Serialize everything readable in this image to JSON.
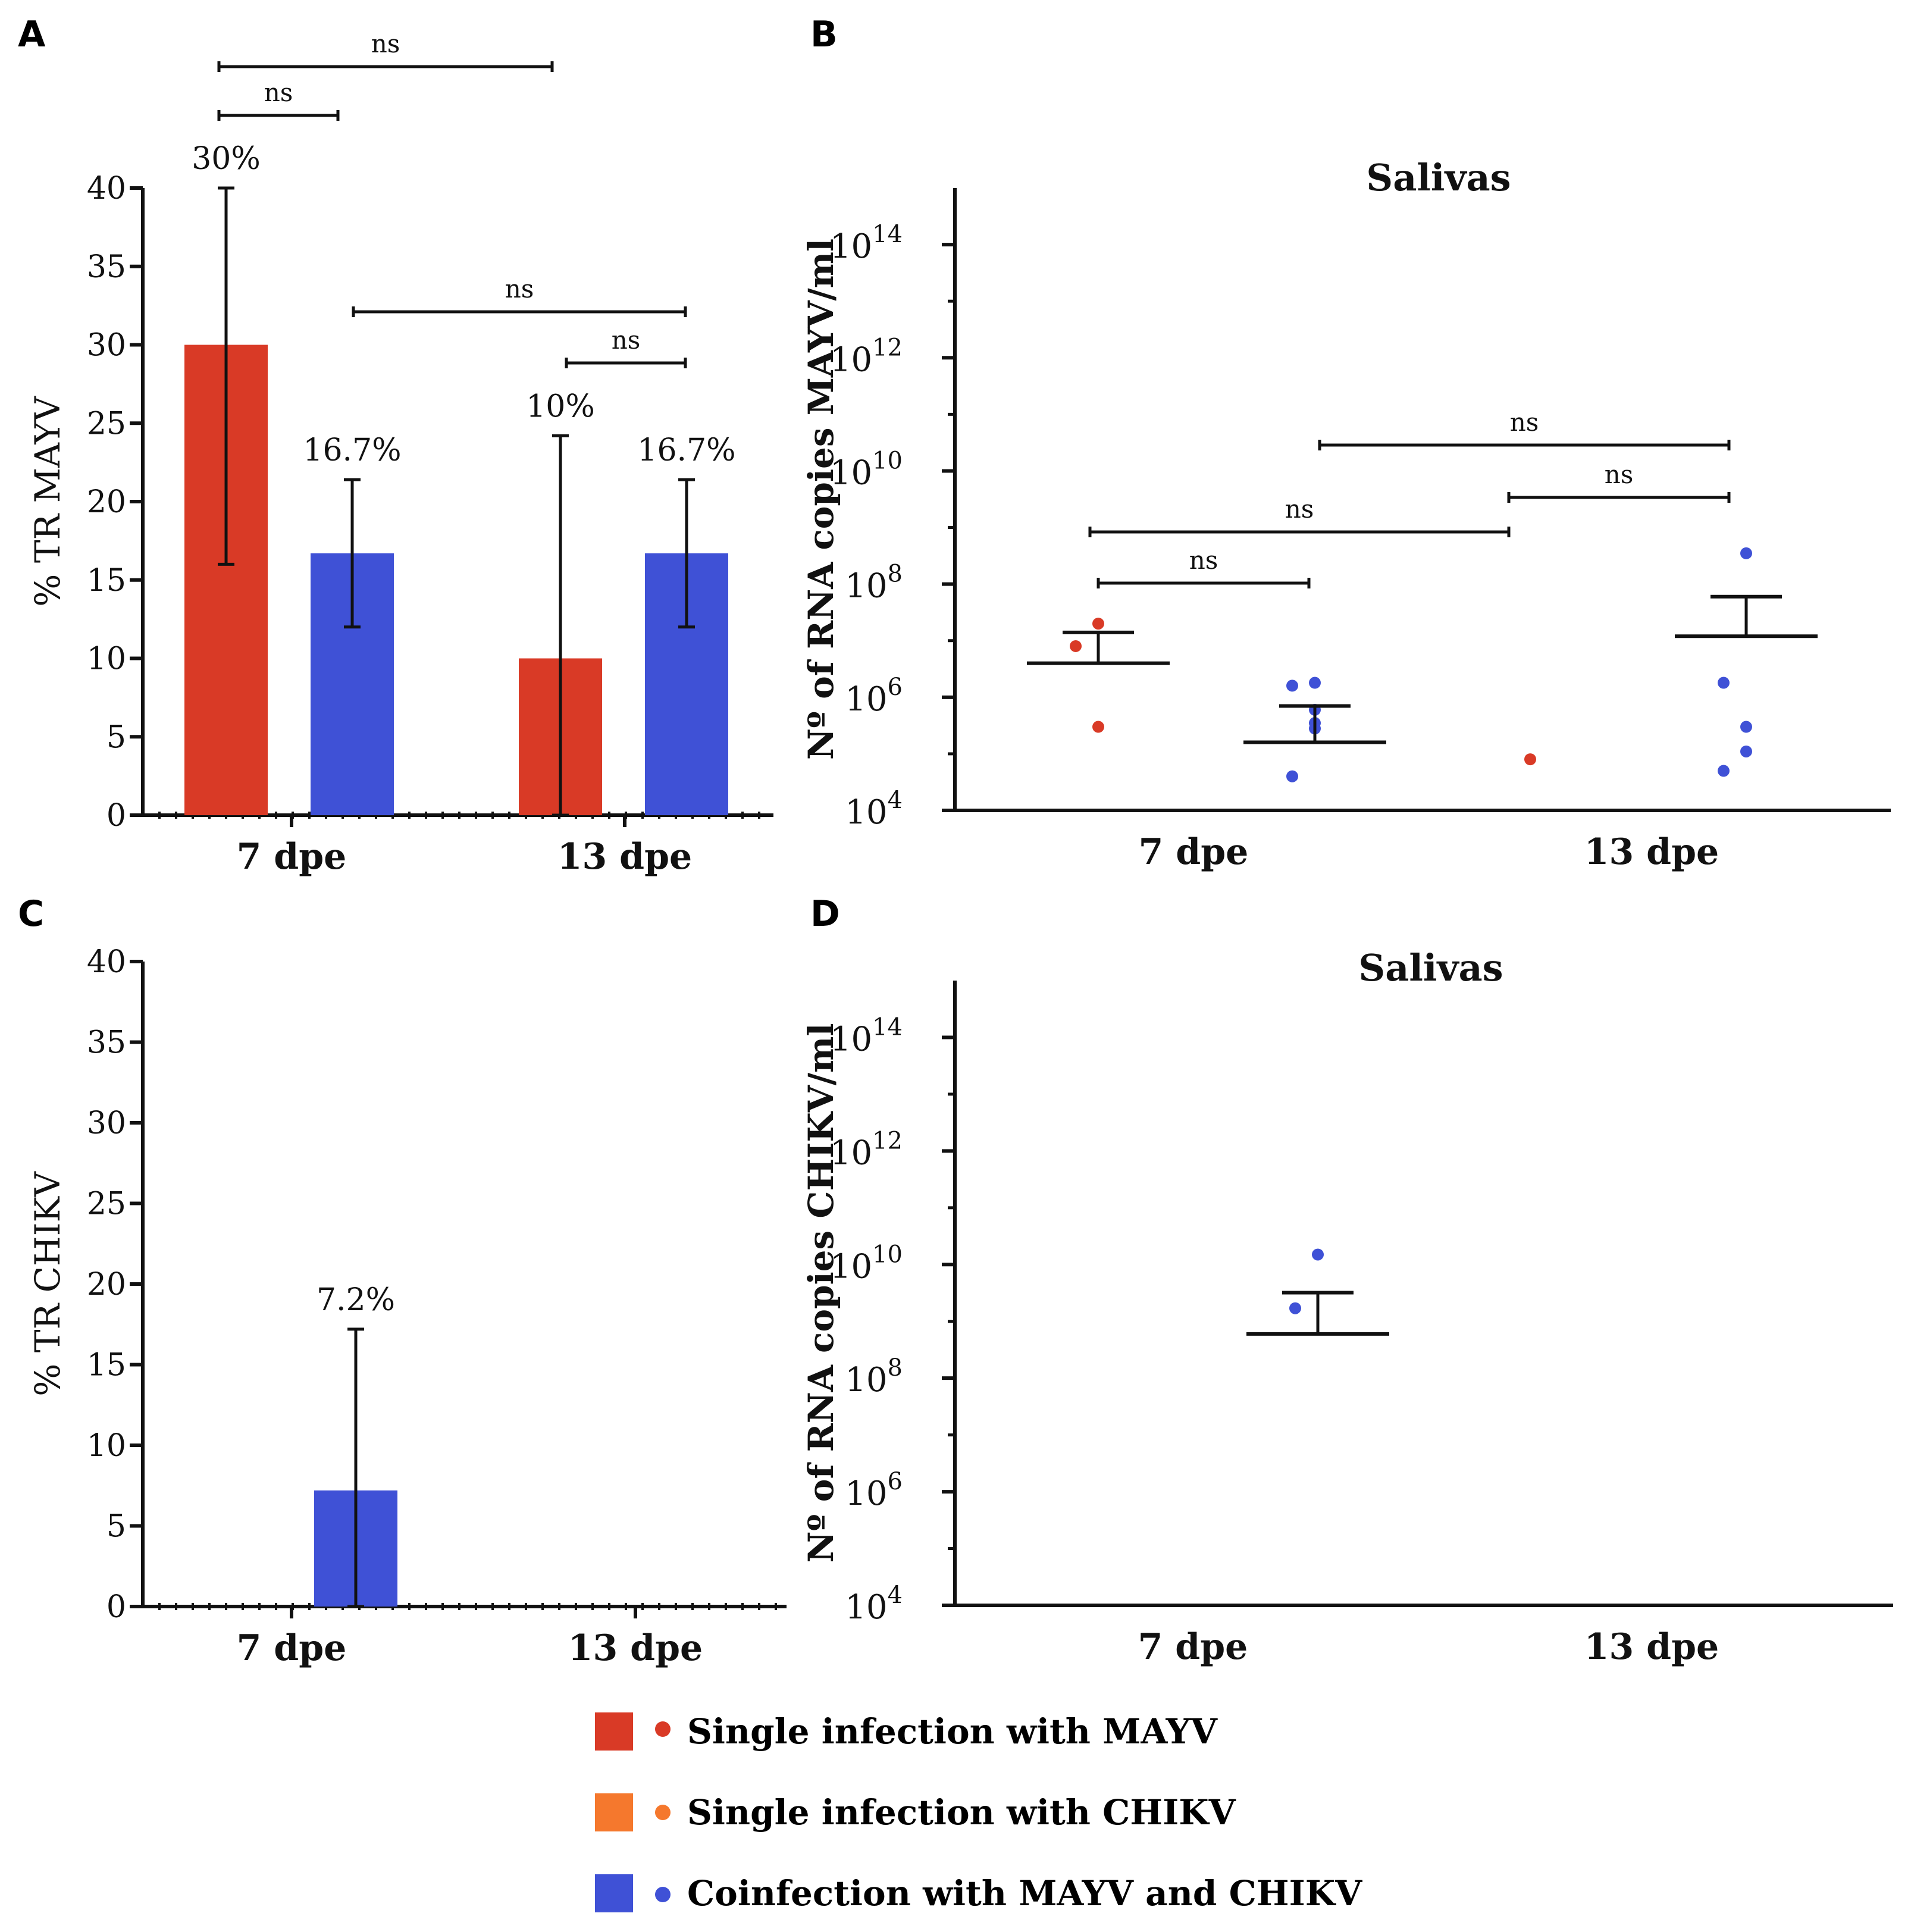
{
  "colors": {
    "mayv": "#d93a26",
    "chikv": "#f5782d",
    "coinf": "#3f51d6",
    "axis": "#111111"
  },
  "chart_data": [
    {
      "panel": "A",
      "type": "bar",
      "ylabel": "% TR MAYV",
      "ylim": [
        0,
        40
      ],
      "yticks": [
        "0",
        "5",
        "10",
        "15",
        "20",
        "25",
        "30",
        "35",
        "40"
      ],
      "categories": [
        "7 dpe",
        "13 dpe"
      ],
      "series": [
        {
          "name": "Single infection with MAYV",
          "color_key": "mayv",
          "values": [
            30,
            10
          ],
          "err_high": [
            40,
            24.2
          ],
          "err_low": [
            16,
            0
          ],
          "labels": [
            "30%",
            "10%"
          ]
        },
        {
          "name": "Coinfection with MAYV and CHIKV",
          "color_key": "coinf",
          "values": [
            16.7,
            16.7
          ],
          "err_high": [
            21.4,
            21.4
          ],
          "err_low": [
            12,
            12
          ],
          "labels": [
            "16.7%",
            "16.7%"
          ]
        }
      ],
      "comparisons": [
        {
          "label": "ns",
          "from": "7 dpe MAYV",
          "to": "13 dpe MAYV"
        },
        {
          "label": "ns",
          "from": "7 dpe MAYV",
          "to": "7 dpe Coinfection"
        },
        {
          "label": "ns",
          "from": "7 dpe Coinfection",
          "to": "13 dpe Coinfection"
        },
        {
          "label": "ns",
          "from": "13 dpe MAYV",
          "to": "13 dpe Coinfection"
        }
      ]
    },
    {
      "panel": "B",
      "type": "scatter",
      "title": "Salivas",
      "ylabel": "Nº of RNA copies MAYV/ml",
      "yscale": "log10",
      "ylim_exp": [
        4,
        15
      ],
      "yticks_exp": [
        "4",
        "6",
        "8",
        "10",
        "12",
        "14"
      ],
      "categories": [
        "7 dpe",
        "13 dpe"
      ],
      "groups": [
        {
          "category": "7 dpe",
          "color_key": "mayv",
          "points": [
            20000000.0,
            8000000.0,
            300000.0
          ],
          "mean": 4000000.0,
          "sem_high": 14000000.0
        },
        {
          "category": "7 dpe",
          "color_key": "coinf",
          "points": [
            1800000.0,
            1600000.0,
            350000.0,
            280000.0,
            40000.0,
            600000.0
          ],
          "mean": 160000.0,
          "sem_high": 700000.0
        },
        {
          "category": "13 dpe",
          "color_key": "mayv",
          "points": [
            80000.0
          ],
          "mean": null,
          "sem_high": null
        },
        {
          "category": "13 dpe",
          "color_key": "coinf",
          "points": [
            350000000.0,
            1800000.0,
            300000.0,
            110000.0,
            50000.0
          ],
          "mean": 12000000.0,
          "sem_high": 60000000.0
        }
      ],
      "comparisons": [
        {
          "label": "ns",
          "from": "7 dpe MAYV",
          "to": "7 dpe Coinfection"
        },
        {
          "label": "ns",
          "from": "7 dpe MAYV",
          "to": "13 dpe MAYV"
        },
        {
          "label": "ns",
          "from": "13 dpe MAYV",
          "to": "13 dpe Coinfection"
        },
        {
          "label": "ns",
          "from": "7 dpe Coinfection",
          "to": "13 dpe Coinfection"
        }
      ]
    },
    {
      "panel": "C",
      "type": "bar",
      "ylabel": "% TR CHIKV",
      "ylim": [
        0,
        40
      ],
      "yticks": [
        "0",
        "5",
        "10",
        "15",
        "20",
        "25",
        "30",
        "35",
        "40"
      ],
      "categories": [
        "7 dpe",
        "13 dpe"
      ],
      "series": [
        {
          "name": "Coinfection with MAYV and CHIKV",
          "color_key": "coinf",
          "values": [
            7.2,
            0
          ],
          "err_high": [
            17.2,
            0
          ],
          "err_low": [
            0,
            0
          ],
          "labels": [
            "7.2%",
            ""
          ]
        }
      ]
    },
    {
      "panel": "D",
      "type": "scatter",
      "title": "Salivas",
      "ylabel": "Nº of RNA copies CHIKV/ml",
      "yscale": "log10",
      "ylim_exp": [
        4,
        15
      ],
      "yticks_exp": [
        "4",
        "6",
        "8",
        "10",
        "12",
        "14"
      ],
      "categories": [
        "7 dpe",
        "13 dpe"
      ],
      "groups": [
        {
          "category": "7 dpe",
          "color_key": "coinf",
          "points": [
            15000000000.0,
            1700000000.0
          ],
          "mean": 600000000.0,
          "sem_high": 3200000000.0
        }
      ]
    }
  ],
  "legend": [
    {
      "label": "Single infection with MAYV",
      "color_key": "mayv"
    },
    {
      "label": "Single infection with CHIKV",
      "color_key": "chikv"
    },
    {
      "label": "Coinfection with MAYV and CHIKV",
      "color_key": "coinf"
    }
  ]
}
